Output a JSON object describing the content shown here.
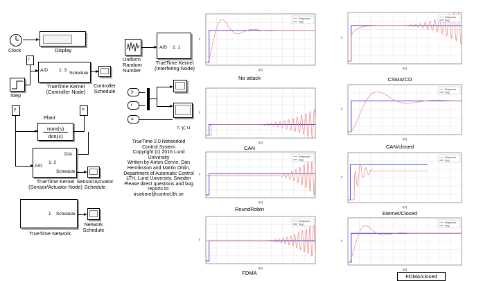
{
  "model": {
    "clock_label": "Clock",
    "display_label": "Display",
    "step_label": "Step",
    "r_port": "r",
    "y_port": "y",
    "u_port": "u",
    "ctrl_ad": "A/D",
    "ctrl_ratio": "1: 3",
    "ctrl_schedule": "Schedule",
    "ctrl_kernel_label": "TrueTime Kernel",
    "ctrl_kernel_sub": "(Controller Node)",
    "ctrl_scope_label_1": "Controller",
    "ctrl_scope_label_2": "Schedule",
    "plant_label": "Plant",
    "plant_num": "num(s)",
    "plant_den": "den(s)",
    "sens_da": "D/A",
    "sens_ad": "A/D",
    "sens_ratio": "1: 2",
    "sens_schedule": "Schedule",
    "sens_kernel_label": "TrueTime Kernel",
    "sens_kernel_sub": "(Sensor/Actuator Node)",
    "sens_scope_label_1": "Sensor/Actuator",
    "sens_scope_label_2": "Schedule",
    "net_id": "1",
    "net_schedule": "Schedule",
    "net_label": "TrueTime Network",
    "net_scope_label_1": "Network",
    "net_scope_label_2": "Schedule",
    "rand_label_1": "Uniform",
    "rand_label_2": "Random",
    "rand_label_3": "Number",
    "int_ad": "A/D",
    "int_ratio": "1: 1",
    "int_kernel_label": "TrueTime Kernel",
    "int_kernel_sub": "(Interfering Node)",
    "mux_y": "y",
    "mux_r": "r",
    "mux_u": "u",
    "ryu_label": "r, y; u",
    "credits": [
      "TrueTime 2.0  Networked",
      "Control System",
      "Copyright (c) 2016 Lund",
      "University",
      "Written by Anton Cervin, Dan",
      "Henriksson and Martin Ohlin,",
      "Department of Automatic Control",
      "LTH, Lund University, Sweden",
      "Please direct questions and bug",
      "reports to:",
      "truetime@control.lth.se"
    ]
  },
  "plots": [
    {
      "id": "no-attack",
      "caption": "No attack",
      "legend": [
        "Response",
        "Step"
      ],
      "xlabel": "t(s)",
      "ylabel": "y"
    },
    {
      "id": "csma-cd",
      "caption": "CSMA/CD",
      "legend": [
        "Response",
        "Step"
      ],
      "xlabel": "t(s)",
      "ylabel": "y"
    },
    {
      "id": "can",
      "caption": "CAN",
      "legend": [],
      "xlabel": "t(s)",
      "ylabel": "y"
    },
    {
      "id": "can-closed",
      "caption": "CAN/closed",
      "legend": [
        "Response",
        "Step"
      ],
      "xlabel": "t(s)",
      "ylabel": "y"
    },
    {
      "id": "roundrobin",
      "caption": "RoundRobin",
      "legend": [
        "Response",
        "Step"
      ],
      "xlabel": "t(s)",
      "ylabel": "y"
    },
    {
      "id": "ethernet-closed",
      "caption": "Eternet/Closed",
      "legend": [
        "Response",
        "Step"
      ],
      "xlabel": "t(s)",
      "ylabel": "y"
    },
    {
      "id": "fdma",
      "caption": "FDMA",
      "legend": [
        "Response",
        "Step"
      ],
      "xlabel": "t(s)",
      "ylabel": "y"
    },
    {
      "id": "fdma-closed",
      "caption": "FDMA/closed",
      "legend": [
        "Response",
        "Step"
      ],
      "xlabel": "t(s)",
      "ylabel": "y"
    }
  ],
  "colors": {
    "response": "#f08080",
    "step": "#3a3ad8"
  }
}
